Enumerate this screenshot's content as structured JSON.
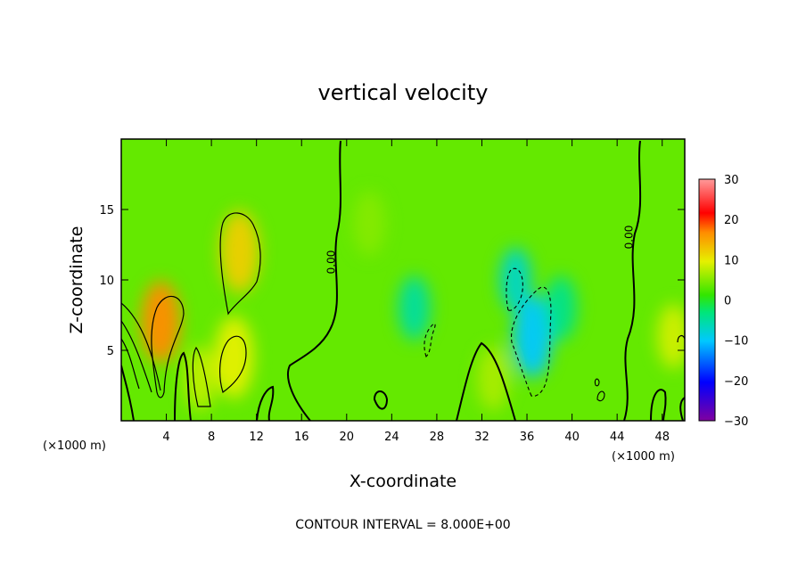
{
  "chart_data": {
    "type": "heatmap",
    "title": "vertical velocity",
    "xlabel": "X-coordinate",
    "ylabel": "Z-coordinate",
    "x_unit_left": "(×1000 m)",
    "x_unit_right": "(×1000 m)",
    "x_ticks": [
      4,
      8,
      12,
      16,
      20,
      24,
      28,
      32,
      36,
      40,
      44,
      48
    ],
    "y_ticks": [
      5,
      10,
      15
    ],
    "xlim": [
      0,
      50
    ],
    "ylim": [
      0,
      20
    ],
    "colorbar": {
      "ticks": [
        30,
        20,
        10,
        0,
        -10,
        -20,
        -30
      ],
      "range": [
        -30,
        30
      ],
      "colormap": [
        "#8000a0",
        "#0000ff",
        "#00c8ff",
        "#00e678",
        "#32e600",
        "#e6f000",
        "#ff8c00",
        "#ff0000",
        "#ff9a9a"
      ]
    },
    "contour_interval_text": "CONTOUR INTERVAL = 8.000E+00",
    "contour_labels": [
      "0.00",
      "0.00"
    ],
    "field_base": 3,
    "features": [
      {
        "x": 3.5,
        "z": 7,
        "w": 16
      },
      {
        "x": 10.5,
        "z": 12,
        "w": 12
      },
      {
        "x": 10,
        "z": 4.5,
        "w": 10
      },
      {
        "x": 7,
        "z": 3,
        "w": 8
      },
      {
        "x": 22,
        "z": 14,
        "w": 5
      },
      {
        "x": 33,
        "z": 3,
        "w": 7
      },
      {
        "x": 49,
        "z": 6,
        "w": 9
      },
      {
        "x": 26,
        "z": 8,
        "w": -5
      },
      {
        "x": 36.5,
        "z": 6,
        "w": -10
      },
      {
        "x": 35,
        "z": 10,
        "w": -7
      },
      {
        "x": 39,
        "z": 8,
        "w": -4
      }
    ]
  }
}
